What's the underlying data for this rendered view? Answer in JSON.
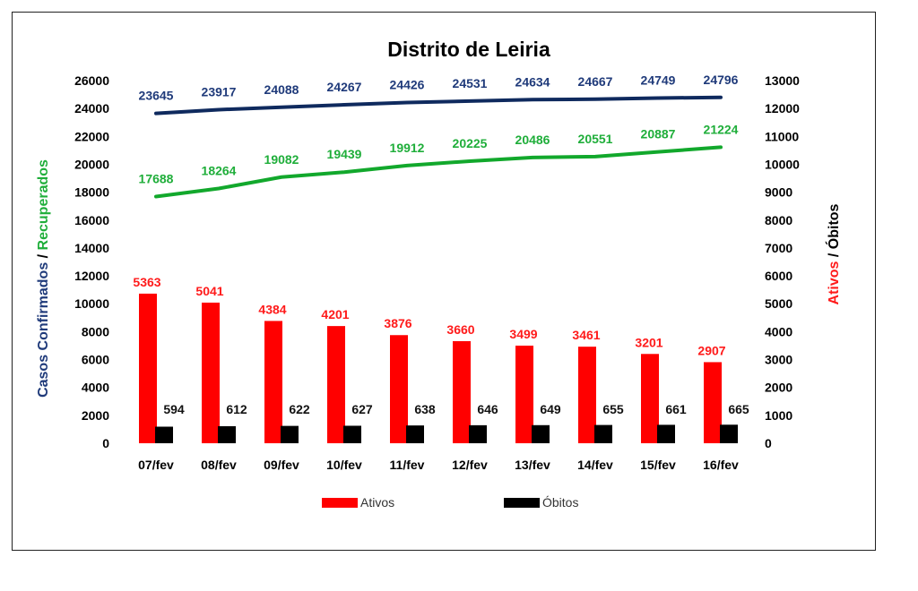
{
  "chart_data": {
    "type": "bar",
    "title": "Distrito de Leiria",
    "categories": [
      "07/fev",
      "08/fev",
      "09/fev",
      "10/fev",
      "11/fev",
      "12/fev",
      "13/fev",
      "14/fev",
      "15/fev",
      "16/fev"
    ],
    "left_axis": {
      "label_parts": [
        "Casos Confirmados",
        " / ",
        "Recuperados"
      ],
      "label_colors": [
        "#1f3a7a",
        "#000000",
        "#1fae3a"
      ],
      "ylim": [
        0,
        26000
      ],
      "ticks": [
        "0",
        "2000",
        "4000",
        "6000",
        "8000",
        "10000",
        "12000",
        "14000",
        "16000",
        "18000",
        "20000",
        "22000",
        "24000",
        "26000"
      ]
    },
    "right_axis": {
      "label_parts": [
        "Ativos",
        " / ",
        "Óbitos"
      ],
      "label_colors": [
        "#ff1a1a",
        "#000000",
        "#000000"
      ],
      "ylim": [
        0,
        13000
      ],
      "ticks": [
        "0",
        "1000",
        "2000",
        "3000",
        "4000",
        "5000",
        "6000",
        "7000",
        "8000",
        "9000",
        "10000",
        "11000",
        "12000",
        "13000"
      ]
    },
    "series": [
      {
        "name": "Casos Confirmados",
        "kind": "line",
        "axis": "left",
        "color": "#0f2a5e",
        "label_color": "#1f3a7a",
        "values": [
          23645,
          23917,
          24088,
          24267,
          24426,
          24531,
          24634,
          24667,
          24749,
          24796
        ]
      },
      {
        "name": "Recuperados",
        "kind": "line",
        "axis": "left",
        "color": "#12a82c",
        "label_color": "#1fae3a",
        "values": [
          17688,
          18264,
          19082,
          19439,
          19912,
          20225,
          20486,
          20551,
          20887,
          21224
        ]
      },
      {
        "name": "Ativos",
        "kind": "bar",
        "axis": "right",
        "color": "#ff0000",
        "label_color": "#ff1a1a",
        "values": [
          5363,
          5041,
          4384,
          4201,
          3876,
          3660,
          3499,
          3461,
          3201,
          2907
        ]
      },
      {
        "name": "Óbitos",
        "kind": "bar",
        "axis": "right",
        "color": "#000000",
        "label_color": "#111111",
        "values": [
          594,
          612,
          622,
          627,
          638,
          646,
          649,
          655,
          661,
          665
        ]
      }
    ],
    "legend": {
      "placement": "bottom",
      "items": [
        {
          "label": "Ativos",
          "color": "#ff0000"
        },
        {
          "label": "Óbitos",
          "color": "#000000"
        }
      ]
    },
    "grid": false
  }
}
